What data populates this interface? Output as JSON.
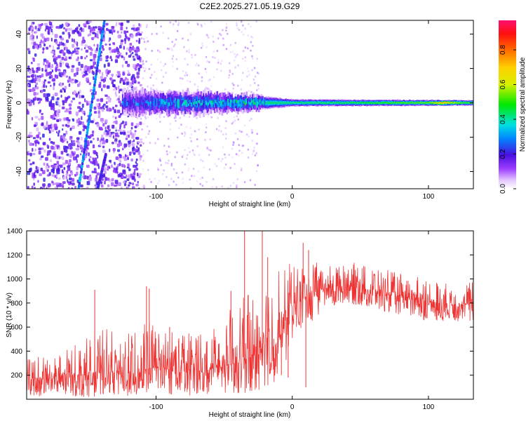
{
  "figure_title": "C2E2.2025.271.05.19.G29",
  "chart_data": [
    {
      "type": "heatmap",
      "title": "C2E2.2025.271.05.19.G29",
      "xlabel": "Height of straight line (km)",
      "ylabel": "Frequency (Hz)",
      "xlim": [
        -195,
        133
      ],
      "ylim": [
        -50,
        48
      ],
      "x_ticks": [
        -100,
        0,
        100
      ],
      "x_tick_labels": [
        "-100",
        "0",
        "100"
      ],
      "y_ticks": [
        -40,
        -20,
        0,
        20,
        40
      ],
      "y_tick_labels": [
        "-40",
        "-20",
        "0",
        "20",
        "40"
      ],
      "colorbar": {
        "label": "Normalized spectral amplitude",
        "range": [
          0,
          0.97
        ],
        "ticks": [
          0.0,
          0.2,
          0.4,
          0.6,
          0.8
        ],
        "tick_labels": [
          "0.0",
          "0.2",
          "0.4",
          "0.6",
          "0.8"
        ]
      },
      "features": {
        "main_band_center_hz": 0,
        "main_band_halfwidth_hz_at_x": [
          [
            -120,
            7
          ],
          [
            -60,
            6
          ],
          [
            -25,
            4
          ],
          [
            0,
            2
          ],
          [
            130,
            1.5
          ]
        ],
        "main_band_peak_amplitude_at_x": [
          [
            -120,
            0.3
          ],
          [
            -80,
            0.4
          ],
          [
            -40,
            0.45
          ],
          [
            -20,
            0.5
          ],
          [
            50,
            0.55
          ],
          [
            100,
            0.65
          ],
          [
            110,
            0.85
          ],
          [
            125,
            0.6
          ]
        ],
        "diagonal_streak_1": {
          "from": [
            -157,
            -50
          ],
          "to": [
            -138,
            48
          ],
          "amplitude": 0.3
        },
        "diagonal_streak_2": {
          "from": [
            -143,
            -50
          ],
          "to": [
            -137,
            -30
          ],
          "amplitude": 0.2
        },
        "scatter_region_x": [
          -195,
          -112
        ],
        "faint_scatter_region_x": [
          -112,
          -25
        ]
      }
    },
    {
      "type": "line",
      "xlabel": "Height of straight line (km)",
      "ylabel": "SNR (10 * v/v)",
      "xlim": [
        -195,
        133
      ],
      "ylim": [
        0,
        1400
      ],
      "x_ticks": [
        -100,
        0,
        100
      ],
      "x_tick_labels": [
        "-100",
        "0",
        "100"
      ],
      "y_ticks": [
        200,
        400,
        600,
        800,
        1000,
        1200,
        1400
      ],
      "y_tick_labels": [
        "200",
        "400",
        "600",
        "800",
        "1000",
        "1200",
        "1400"
      ],
      "series": [
        {
          "name": "SNR",
          "color": "#ee3333",
          "envelope_x": [
            -195,
            -170,
            -150,
            -140,
            -120,
            -110,
            -100,
            -80,
            -60,
            -40,
            -30,
            -20,
            -12,
            -5,
            0,
            5,
            15,
            25,
            40,
            60,
            80,
            100,
            120,
            133
          ],
          "envelope_low": [
            30,
            20,
            20,
            30,
            30,
            40,
            50,
            30,
            40,
            50,
            40,
            100,
            150,
            300,
            500,
            550,
            650,
            750,
            800,
            750,
            700,
            650,
            650,
            650
          ],
          "envelope_mid": [
            160,
            170,
            200,
            220,
            190,
            230,
            260,
            230,
            240,
            300,
            350,
            400,
            450,
            620,
            780,
            820,
            880,
            920,
            940,
            900,
            850,
            800,
            780,
            790
          ],
          "envelope_high": [
            350,
            380,
            520,
            620,
            550,
            700,
            600,
            580,
            620,
            800,
            900,
            1000,
            1100,
            1100,
            1150,
            1100,
            1150,
            1100,
            1150,
            1100,
            1050,
            1000,
            950,
            1000
          ],
          "spikes": [
            [
              -145,
              910
            ],
            [
              -107,
              940
            ],
            [
              -105,
              920
            ],
            [
              -90,
              600
            ],
            [
              -45,
              900
            ],
            [
              -35,
              1400
            ],
            [
              -22,
              1420
            ],
            [
              -18,
              1180
            ],
            [
              8,
              1300
            ],
            [
              12,
              1240
            ],
            [
              -8,
              200
            ],
            [
              -3,
              180
            ],
            [
              10,
              100
            ]
          ]
        }
      ]
    }
  ]
}
